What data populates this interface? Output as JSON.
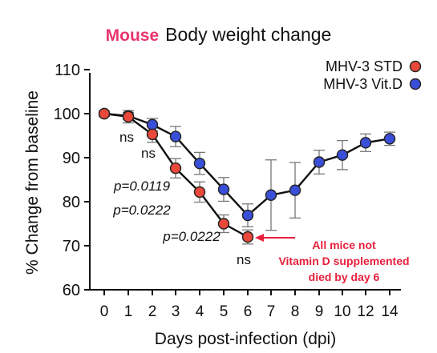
{
  "chart_data": {
    "type": "line",
    "title_tag": "Mouse",
    "title": "Body weight change",
    "xlabel": "Days post-infection (dpi)",
    "ylabel": "% Change from baseline",
    "ylim": [
      60,
      110
    ],
    "yticks": [
      60,
      70,
      80,
      90,
      100,
      110
    ],
    "xticks": [
      0,
      1,
      2,
      3,
      4,
      5,
      6,
      7,
      8,
      9,
      10,
      12,
      14
    ],
    "legend_position": "top-right",
    "series": [
      {
        "name": "MHV-3 STD",
        "color": "#e8493a",
        "x": [
          0,
          1,
          2,
          3,
          4,
          5,
          6
        ],
        "y": [
          100,
          99.3,
          95.3,
          87.6,
          82.2,
          75,
          72
        ],
        "err": [
          0.6,
          1.4,
          1.8,
          2.2,
          2.3,
          2.0,
          1.6
        ]
      },
      {
        "name": "MHV-3 Vit.D",
        "color": "#3a4fd8",
        "x": [
          0,
          1,
          2,
          3,
          4,
          5,
          6,
          7,
          8,
          9,
          10,
          12,
          14
        ],
        "y": [
          100,
          99.5,
          97.5,
          94.8,
          88.7,
          82.8,
          76.9,
          81.5,
          82.6,
          89,
          90.6,
          93.4,
          94.3
        ],
        "err": [
          0.6,
          0.8,
          1.4,
          2.3,
          2.5,
          2.7,
          2.6,
          8,
          6.3,
          2.7,
          3.3,
          2,
          1.5
        ]
      }
    ],
    "annotations": [
      {
        "text": "ns",
        "x": 1,
        "y": 99.3
      },
      {
        "text": "ns",
        "x": 2,
        "y": 95.3
      },
      {
        "text": "p=0.0119",
        "x": 3,
        "y": 87.6
      },
      {
        "text": "p=0.0222",
        "x": 4,
        "y": 82.2
      },
      {
        "text": "p=0.0222",
        "x": 6,
        "y": 72
      },
      {
        "text": "ns",
        "x": 6,
        "y": 72
      }
    ],
    "callout": {
      "lines": [
        "All mice not",
        "Vitamin D supplemented",
        "died by day 6"
      ],
      "color": "#e8203c",
      "target_x": 6,
      "target_y": 72
    }
  }
}
